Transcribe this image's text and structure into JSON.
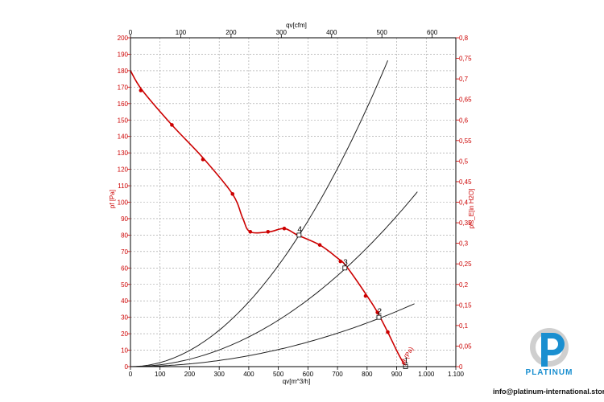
{
  "chart_data": {
    "type": "line",
    "axes": {
      "x_bottom": {
        "label": "qv[m^3/h]",
        "range": [
          0,
          1100
        ],
        "ticks": [
          "0",
          "100",
          "200",
          "300",
          "400",
          "500",
          "600",
          "700",
          "800",
          "900",
          "1.000",
          "1.100"
        ]
      },
      "x_top": {
        "label": "qv[cfm]",
        "range": [
          0,
          647
        ],
        "ticks": [
          "0",
          "100",
          "200",
          "300",
          "400",
          "500",
          "600"
        ]
      },
      "y_left": {
        "label": "pf [Pa]",
        "range": [
          0,
          200
        ],
        "ticks": [
          "0",
          "10",
          "20",
          "30",
          "40",
          "50",
          "60",
          "70",
          "80",
          "90",
          "100",
          "110",
          "120",
          "130",
          "140",
          "150",
          "160",
          "170",
          "180",
          "190",
          "200"
        ]
      },
      "y_right": {
        "label": "pfs_E[in H2O]",
        "range": [
          0,
          0.8
        ],
        "ticks": [
          "0",
          "0,05",
          "0,1",
          "0,15",
          "0,2",
          "0,25",
          "0,3",
          "0,35",
          "0,4",
          "0,45",
          "0,5",
          "0,55",
          "0,6",
          "0,65",
          "0,7",
          "0,75",
          "0,8"
        ]
      }
    },
    "grid": true,
    "series": [
      {
        "name": "pf (Pa)",
        "color": "#cc0000",
        "curve": [
          [
            0,
            180
          ],
          [
            40,
            168
          ],
          [
            140,
            147
          ],
          [
            245,
            127
          ],
          [
            345,
            105
          ],
          [
            380,
            90
          ],
          [
            405,
            82
          ],
          [
            470,
            82
          ],
          [
            520,
            84
          ],
          [
            565,
            80
          ],
          [
            640,
            74
          ],
          [
            700,
            66
          ],
          [
            730,
            61
          ],
          [
            800,
            43
          ],
          [
            835,
            33
          ],
          [
            870,
            21
          ],
          [
            905,
            8
          ],
          [
            930,
            0
          ]
        ],
        "markers": [
          [
            35,
            168
          ],
          [
            140,
            147
          ],
          [
            245,
            126
          ],
          [
            345,
            105
          ],
          [
            405,
            82
          ],
          [
            465,
            82
          ],
          [
            520,
            84
          ],
          [
            640,
            74
          ],
          [
            710,
            64
          ],
          [
            795,
            43
          ],
          [
            835,
            33
          ],
          [
            870,
            21
          ]
        ]
      }
    ],
    "system_curves": [
      {
        "k": 0.000246,
        "x_max": 875
      },
      {
        "k": 0.000113,
        "x_max": 970
      },
      {
        "k": 4.15e-05,
        "x_max": 960
      }
    ],
    "operating_points": [
      {
        "label": "1",
        "x": 930,
        "y": 0
      },
      {
        "label": "2",
        "x": 840,
        "y": 30
      },
      {
        "label": "3",
        "x": 725,
        "y": 60
      },
      {
        "label": "4",
        "x": 570,
        "y": 80
      }
    ],
    "curve_annotation": "pf (Pa)"
  },
  "branding": {
    "logo_name": "PLATINUM",
    "email": "info@platinum-international.store",
    "logo_colors": {
      "primary": "#1a8fd0",
      "secondary": "#cfcfcf"
    }
  }
}
